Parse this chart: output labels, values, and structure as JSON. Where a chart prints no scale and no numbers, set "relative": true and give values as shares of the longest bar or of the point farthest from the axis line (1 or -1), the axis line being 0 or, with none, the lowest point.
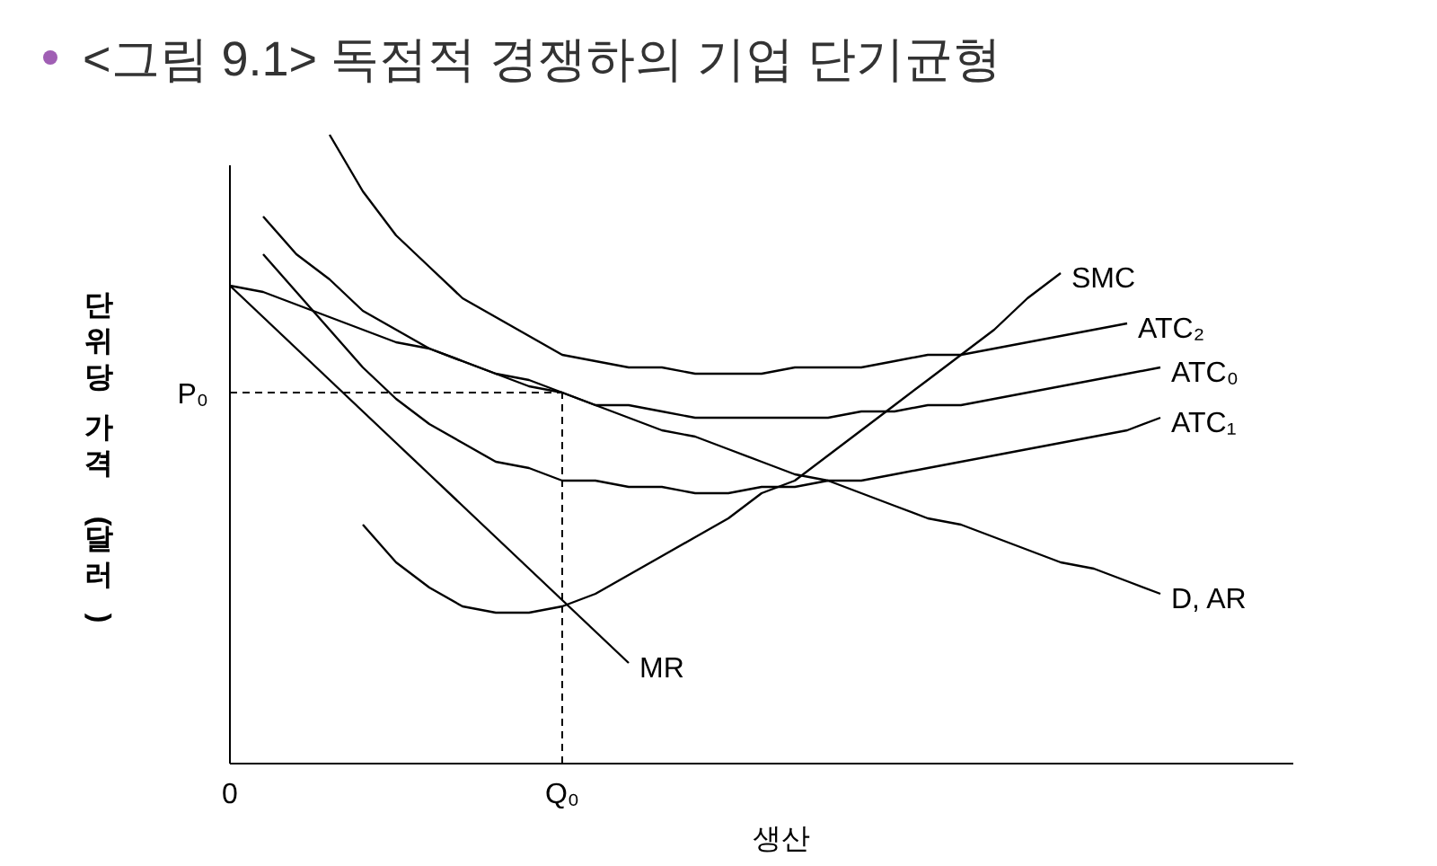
{
  "chart_data": {
    "type": "line",
    "relative": true,
    "title": "<그림 9.1> 독점적 경쟁하의 기업 단기균형",
    "xlabel": "생산",
    "ylabel": "단위당 가격 (달러)",
    "categories": [
      "0",
      null,
      null,
      null,
      null,
      null,
      null,
      null,
      null,
      null,
      "Q₀",
      null,
      null,
      null,
      null,
      null,
      null,
      null,
      null,
      null,
      null,
      null,
      null,
      null,
      null,
      null,
      null,
      null,
      null,
      null,
      null,
      null,
      null
    ],
    "series": [
      {
        "name": "SMC",
        "color": "#000000",
        "values": [
          null,
          null,
          null,
          null,
          0.38,
          0.32,
          0.28,
          0.25,
          0.24,
          0.24,
          0.25,
          0.27,
          0.3,
          0.33,
          0.36,
          0.39,
          0.43,
          0.45,
          0.49,
          0.53,
          0.57,
          0.61,
          0.65,
          0.69,
          0.74,
          0.78,
          null,
          null,
          null,
          null,
          null,
          null,
          null
        ]
      },
      {
        "name": "ATC₂",
        "color": "#000000",
        "values": [
          null,
          null,
          null,
          1.0,
          0.91,
          0.84,
          0.79,
          0.74,
          0.71,
          0.68,
          0.65,
          0.64,
          0.63,
          0.63,
          0.62,
          0.62,
          0.62,
          0.63,
          0.63,
          0.63,
          0.64,
          0.65,
          0.65,
          0.66,
          0.67,
          0.68,
          0.69,
          0.7,
          null,
          null,
          null,
          null,
          null
        ]
      },
      {
        "name": "ATC₀",
        "color": "#000000",
        "values": [
          null,
          0.87,
          0.81,
          0.77,
          0.72,
          0.69,
          0.66,
          0.64,
          0.62,
          0.61,
          0.59,
          0.57,
          0.57,
          0.56,
          0.55,
          0.55,
          0.55,
          0.55,
          0.55,
          0.56,
          0.56,
          0.57,
          0.57,
          0.58,
          0.59,
          0.6,
          0.61,
          0.62,
          0.63,
          null,
          null,
          null,
          null
        ]
      },
      {
        "name": "ATC₁",
        "color": "#000000",
        "values": [
          null,
          0.81,
          0.75,
          0.69,
          0.63,
          0.58,
          0.54,
          0.51,
          0.48,
          0.47,
          0.45,
          0.45,
          0.44,
          0.44,
          0.43,
          0.43,
          0.44,
          0.44,
          0.45,
          0.45,
          0.46,
          0.47,
          0.48,
          0.49,
          0.5,
          0.51,
          0.52,
          0.53,
          0.55,
          null,
          null,
          null,
          null
        ]
      },
      {
        "name": "D, AR",
        "color": "#000000",
        "values": [
          0.76,
          0.75,
          0.73,
          0.71,
          0.69,
          0.67,
          0.66,
          0.64,
          0.62,
          0.6,
          0.59,
          0.57,
          0.55,
          0.53,
          0.52,
          0.5,
          0.48,
          0.46,
          0.45,
          0.43,
          0.41,
          0.39,
          0.38,
          0.36,
          0.34,
          0.32,
          0.31,
          0.29,
          0.27,
          null,
          null,
          null,
          null
        ]
      },
      {
        "name": "MR",
        "color": "#000000",
        "values": [
          0.76,
          0.71,
          0.66,
          0.61,
          0.56,
          0.51,
          0.46,
          0.41,
          0.36,
          0.31,
          0.26,
          0.21,
          0.16,
          null,
          null,
          null,
          null,
          null,
          null,
          null,
          null,
          null,
          null,
          null,
          null,
          null,
          null,
          null,
          null,
          null,
          null,
          null,
          null
        ]
      }
    ],
    "ref_lines": [
      {
        "axis": "y",
        "value": 0.59,
        "label": "P₀",
        "line_style": "dashed"
      },
      {
        "axis": "x",
        "value": "Q₀",
        "line_style": "dashed"
      }
    ]
  }
}
